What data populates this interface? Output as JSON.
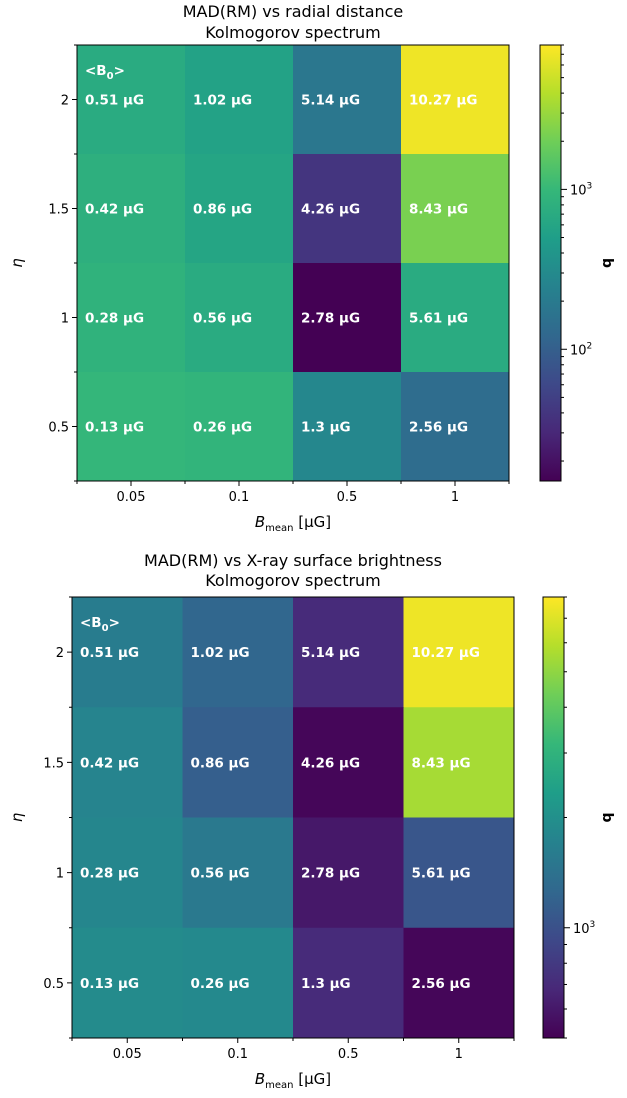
{
  "chart_data": [
    {
      "type": "heatmap",
      "title_lines": [
        "MAD(RM) vs radial distance",
        "Kolmogorov spectrum"
      ],
      "x_categories": [
        "0.05",
        "0.1",
        "0.5",
        "1"
      ],
      "y_categories": [
        "0.5",
        "1",
        "1.5",
        "2"
      ],
      "xlabel_main": "B",
      "xlabel_sub": "mean",
      "xlabel_unit": " [μG]",
      "ylabel": "η",
      "colorbar_label": "q",
      "colorbar_scale": "log",
      "colorbar_range": [
        15,
        8000
      ],
      "colorbar_major_ticks": [
        100,
        1000
      ],
      "colorbar_tick_labels": [
        "10",
        "10"
      ],
      "colorbar_tick_sup": [
        "2",
        "3"
      ],
      "colormap": [
        "#440154",
        "#482878",
        "#3e4989",
        "#31688e",
        "#26828e",
        "#1f9e89",
        "#35b779",
        "#6ece58",
        "#b5de2b",
        "#fde725"
      ],
      "corner_label": "<B",
      "corner_label_sub": "0",
      "corner_label_end": ">",
      "rows": [
        {
          "eta": "2",
          "q": [
            700,
            550,
            180,
            7000
          ],
          "labels": [
            "0.51 μG",
            "1.02 μG",
            "5.14 μG",
            "10.27 μG"
          ]
        },
        {
          "eta": "1.5",
          "q": [
            800,
            600,
            40,
            2200
          ],
          "labels": [
            "0.42 μG",
            "0.86 μG",
            "4.26 μG",
            "8.43 μG"
          ]
        },
        {
          "eta": "1",
          "q": [
            850,
            700,
            15,
            700
          ],
          "labels": [
            "0.28 μG",
            "0.56 μG",
            "2.78 μG",
            "5.61 μG"
          ]
        },
        {
          "eta": "0.5",
          "q": [
            950,
            900,
            280,
            140
          ],
          "labels": [
            "0.13 μG",
            "0.26 μG",
            "1.3 μG",
            "2.56 μG"
          ]
        }
      ]
    },
    {
      "type": "heatmap",
      "title_lines": [
        "MAD(RM) vs X-ray surface brightness",
        "Kolmogorov spectrum"
      ],
      "x_categories": [
        "0.05",
        "0.1",
        "0.5",
        "1"
      ],
      "y_categories": [
        "0.5",
        "1",
        "1.5",
        "2"
      ],
      "xlabel_main": "B",
      "xlabel_sub": "mean",
      "xlabel_unit": " [μG]",
      "ylabel": "η",
      "colorbar_label": "q",
      "colorbar_scale": "log",
      "colorbar_range": [
        500,
        8000
      ],
      "colorbar_major_ticks": [
        1000
      ],
      "colorbar_tick_labels": [
        "10"
      ],
      "colorbar_tick_sup": [
        "3"
      ],
      "colormap": [
        "#440154",
        "#482878",
        "#3e4989",
        "#31688e",
        "#26828e",
        "#1f9e89",
        "#35b779",
        "#6ece58",
        "#b5de2b",
        "#fde725"
      ],
      "corner_label": "<B",
      "corner_label_sub": "0",
      "corner_label_end": ">",
      "rows": [
        {
          "eta": "2",
          "q": [
            1600,
            1250,
            700,
            7500
          ],
          "labels": [
            "0.51 μG",
            "1.02 μG",
            "5.14 μG",
            "10.27 μG"
          ]
        },
        {
          "eta": "1.5",
          "q": [
            1750,
            1150,
            520,
            5500
          ],
          "labels": [
            "0.42 μG",
            "0.86 μG",
            "4.26 μG",
            "8.43 μG"
          ]
        },
        {
          "eta": "1",
          "q": [
            1800,
            1550,
            600,
            1050
          ],
          "labels": [
            "0.28 μG",
            "0.56 μG",
            "2.78 μG",
            "5.61 μG"
          ]
        },
        {
          "eta": "0.5",
          "q": [
            1900,
            1850,
            700,
            520
          ],
          "labels": [
            "0.13 μG",
            "0.26 μG",
            "1.3 μG",
            "2.56 μG"
          ]
        }
      ]
    }
  ]
}
